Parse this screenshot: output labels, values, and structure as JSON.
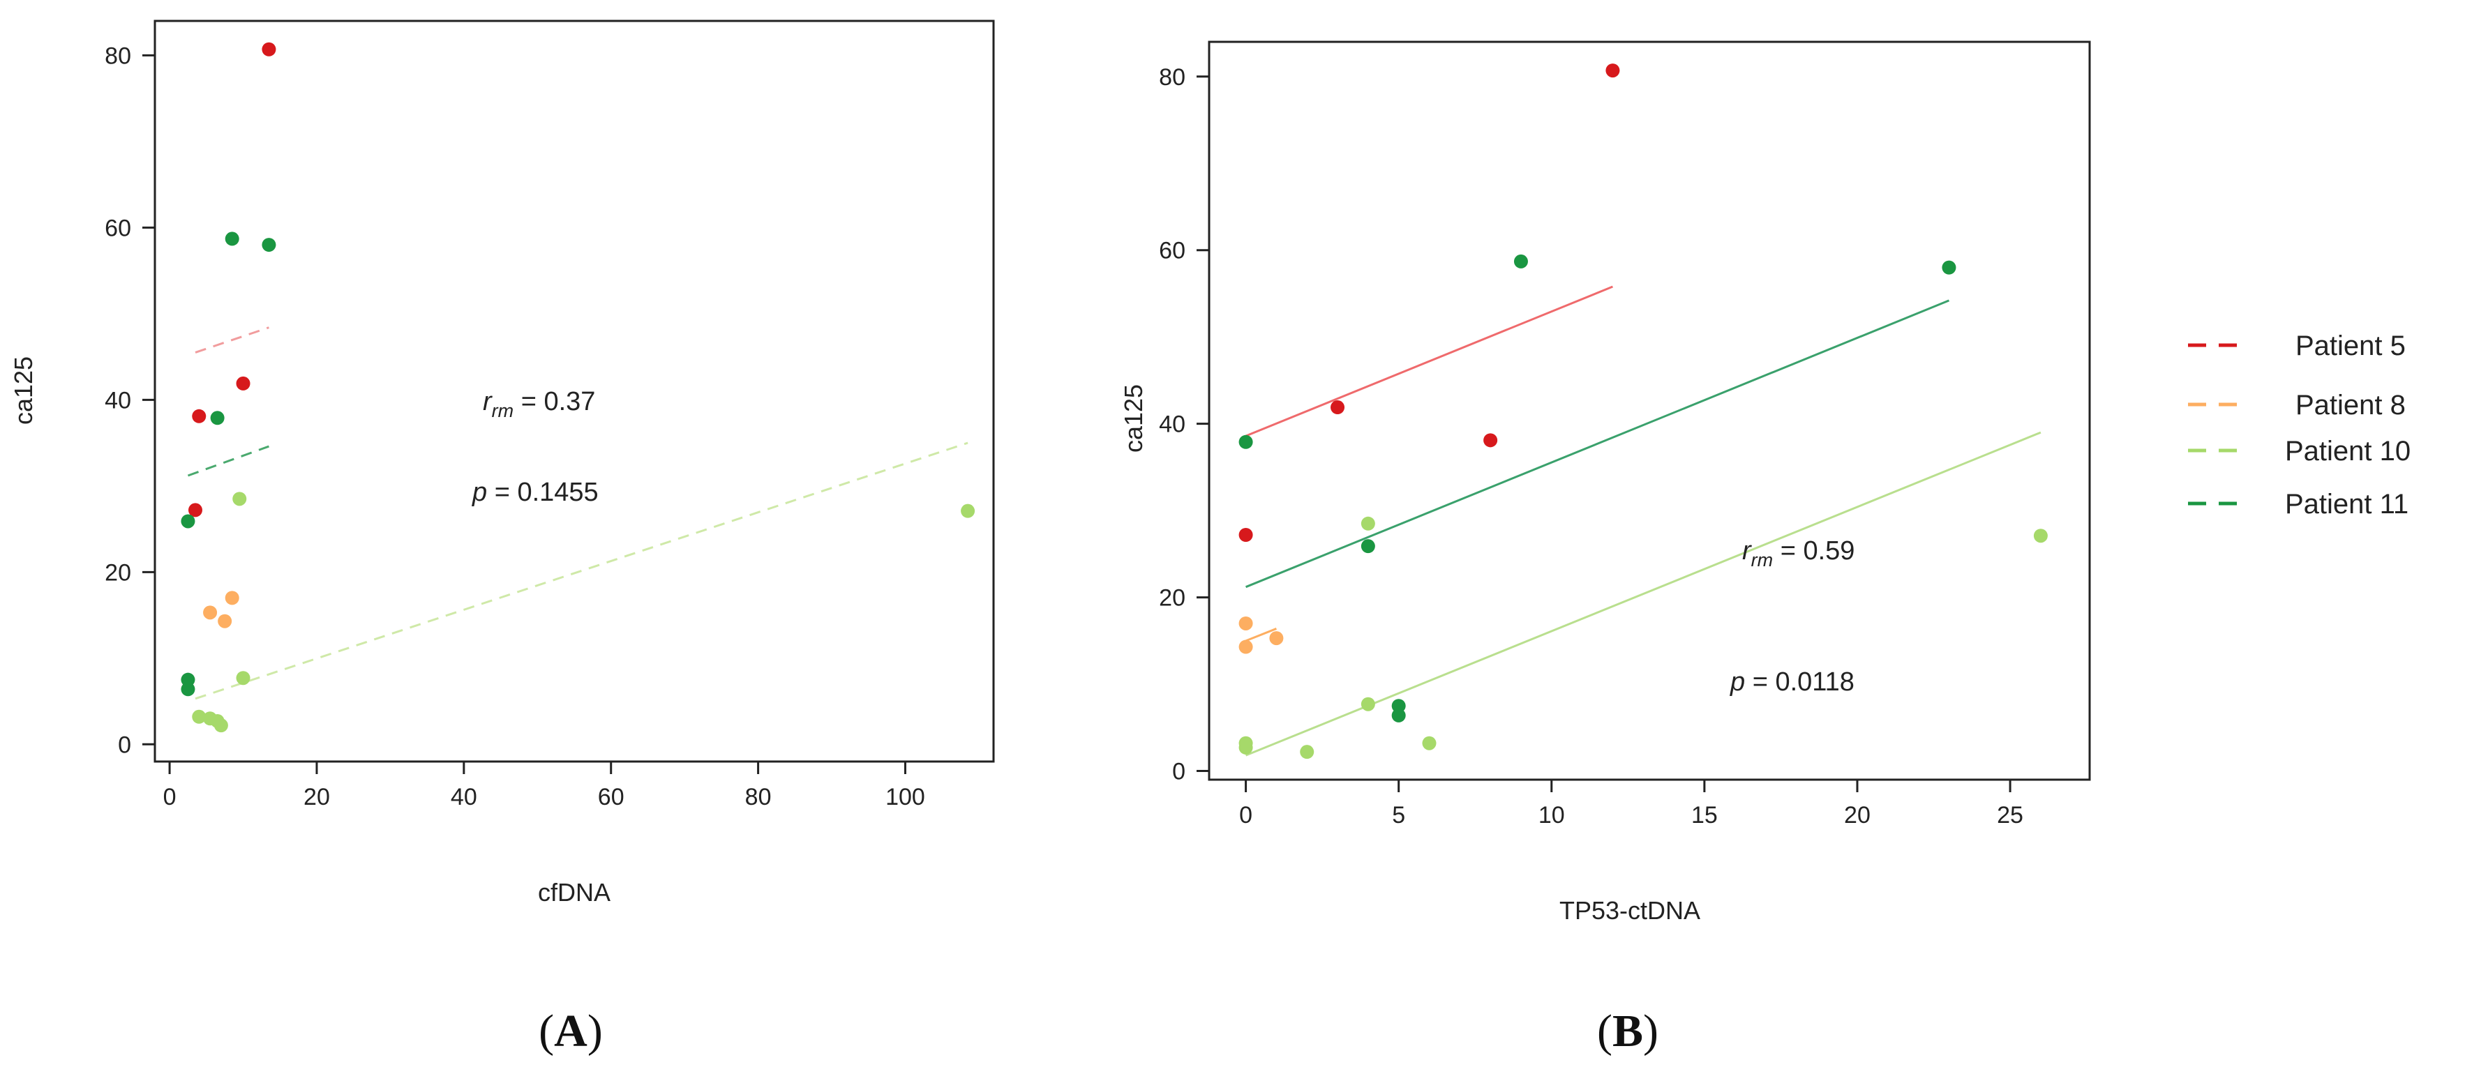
{
  "chart_data": [
    {
      "panel": "A",
      "type": "scatter",
      "xlabel": "cfDNA",
      "ylabel": "ca125",
      "xlim": [
        -2,
        112
      ],
      "ylim": [
        -2,
        84
      ],
      "xticks": [
        0,
        20,
        40,
        60,
        80,
        100
      ],
      "yticks": [
        0,
        20,
        40,
        60,
        80
      ],
      "grid": false,
      "stat_r_label": "r",
      "stat_r_sub": "rm",
      "stat_r_value": " = 0.37",
      "stat_p_label": "p",
      "stat_p_value": " = 0.1455",
      "line_style": "dashed",
      "series": [
        {
          "name": "Patient 5",
          "color": "#d7191c",
          "line_color": "#f19c9d",
          "points": [
            [
              3.5,
              27.2
            ],
            [
              4,
              38.1
            ],
            [
              10,
              41.9
            ],
            [
              13.5,
              80.7
            ]
          ],
          "fit": [
            [
              3.5,
              45.5
            ],
            [
              13.5,
              48.4
            ]
          ]
        },
        {
          "name": "Patient 8",
          "color": "#fdae61",
          "line_color": "#fdae61",
          "points": [
            [
              5.5,
              15.3
            ],
            [
              7.5,
              14.3
            ],
            [
              8.5,
              17.0
            ]
          ],
          "fit": []
        },
        {
          "name": "Patient 10",
          "color": "#a6d96a",
          "line_color": "#cfe9a8",
          "points": [
            [
              4,
              3.2
            ],
            [
              5.5,
              3.0
            ],
            [
              6.5,
              2.7
            ],
            [
              7,
              2.2
            ],
            [
              9.5,
              28.5
            ],
            [
              10,
              7.7
            ],
            [
              108.5,
              27.1
            ]
          ],
          "fit": [
            [
              3.5,
              5.3
            ],
            [
              108.5,
              35.0
            ]
          ]
        },
        {
          "name": "Patient 11",
          "color": "#1a9641",
          "line_color": "#4aa96e",
          "points": [
            [
              2.5,
              6.4
            ],
            [
              2.5,
              7.5
            ],
            [
              2.5,
              25.9
            ],
            [
              6.5,
              37.9
            ],
            [
              8.5,
              58.7
            ],
            [
              13.5,
              58.0
            ]
          ],
          "fit": [
            [
              2.5,
              31.2
            ],
            [
              13.5,
              34.6
            ]
          ]
        }
      ]
    },
    {
      "panel": "B",
      "type": "scatter",
      "xlabel": "TP53-ctDNA",
      "ylabel": "ca125",
      "xlim": [
        -1.2,
        27.6
      ],
      "ylim": [
        -1,
        84
      ],
      "xticks": [
        0,
        5,
        10,
        15,
        20,
        25
      ],
      "yticks": [
        0,
        20,
        40,
        60,
        80
      ],
      "grid": false,
      "stat_r_label": "r",
      "stat_r_sub": "rm",
      "stat_r_value": " = 0.59",
      "stat_p_label": "p",
      "stat_p_value": " = 0.0118",
      "line_style": "solid",
      "series": [
        {
          "name": "Patient 5",
          "color": "#d7191c",
          "line_color": "#ef6a6c",
          "points": [
            [
              0,
              27.2
            ],
            [
              3,
              41.9
            ],
            [
              8,
              38.1
            ],
            [
              12,
              80.7
            ]
          ],
          "fit": [
            [
              0,
              38.6
            ],
            [
              12,
              55.8
            ]
          ]
        },
        {
          "name": "Patient 8",
          "color": "#fdae61",
          "line_color": "#fdae61",
          "points": [
            [
              0,
              17.0
            ],
            [
              0,
              14.3
            ],
            [
              1,
              15.3
            ]
          ],
          "fit": [
            [
              0,
              15.0
            ],
            [
              1,
              16.4
            ]
          ]
        },
        {
          "name": "Patient 10",
          "color": "#a6d96a",
          "line_color": "#b9df8e",
          "points": [
            [
              0,
              3.2
            ],
            [
              0,
              2.7
            ],
            [
              2,
              2.2
            ],
            [
              4,
              28.5
            ],
            [
              4,
              7.7
            ],
            [
              6,
              3.2
            ],
            [
              26,
              27.1
            ]
          ],
          "fit": [
            [
              0,
              1.8
            ],
            [
              26,
              39.0
            ]
          ]
        },
        {
          "name": "Patient 11",
          "color": "#1a9641",
          "line_color": "#3aa16c",
          "points": [
            [
              0,
              37.9
            ],
            [
              4,
              25.9
            ],
            [
              5,
              7.5
            ],
            [
              5,
              6.4
            ],
            [
              9,
              58.7
            ],
            [
              23,
              58.0
            ]
          ],
          "fit": [
            [
              0,
              21.2
            ],
            [
              23,
              54.2
            ]
          ]
        }
      ]
    }
  ],
  "legend": {
    "items": [
      {
        "name": "Patient 5",
        "color": "#d7191c"
      },
      {
        "name": "Patient 8",
        "color": "#fdae61"
      },
      {
        "name": "Patient 10",
        "color": "#a6d96a"
      },
      {
        "name": "Patient 11",
        "color": "#1a9641"
      }
    ]
  },
  "panel_labels": {
    "a_open": "(",
    "a_letter": "A",
    "a_close": ")",
    "b_open": "(",
    "b_letter": "B",
    "b_close": ")"
  }
}
